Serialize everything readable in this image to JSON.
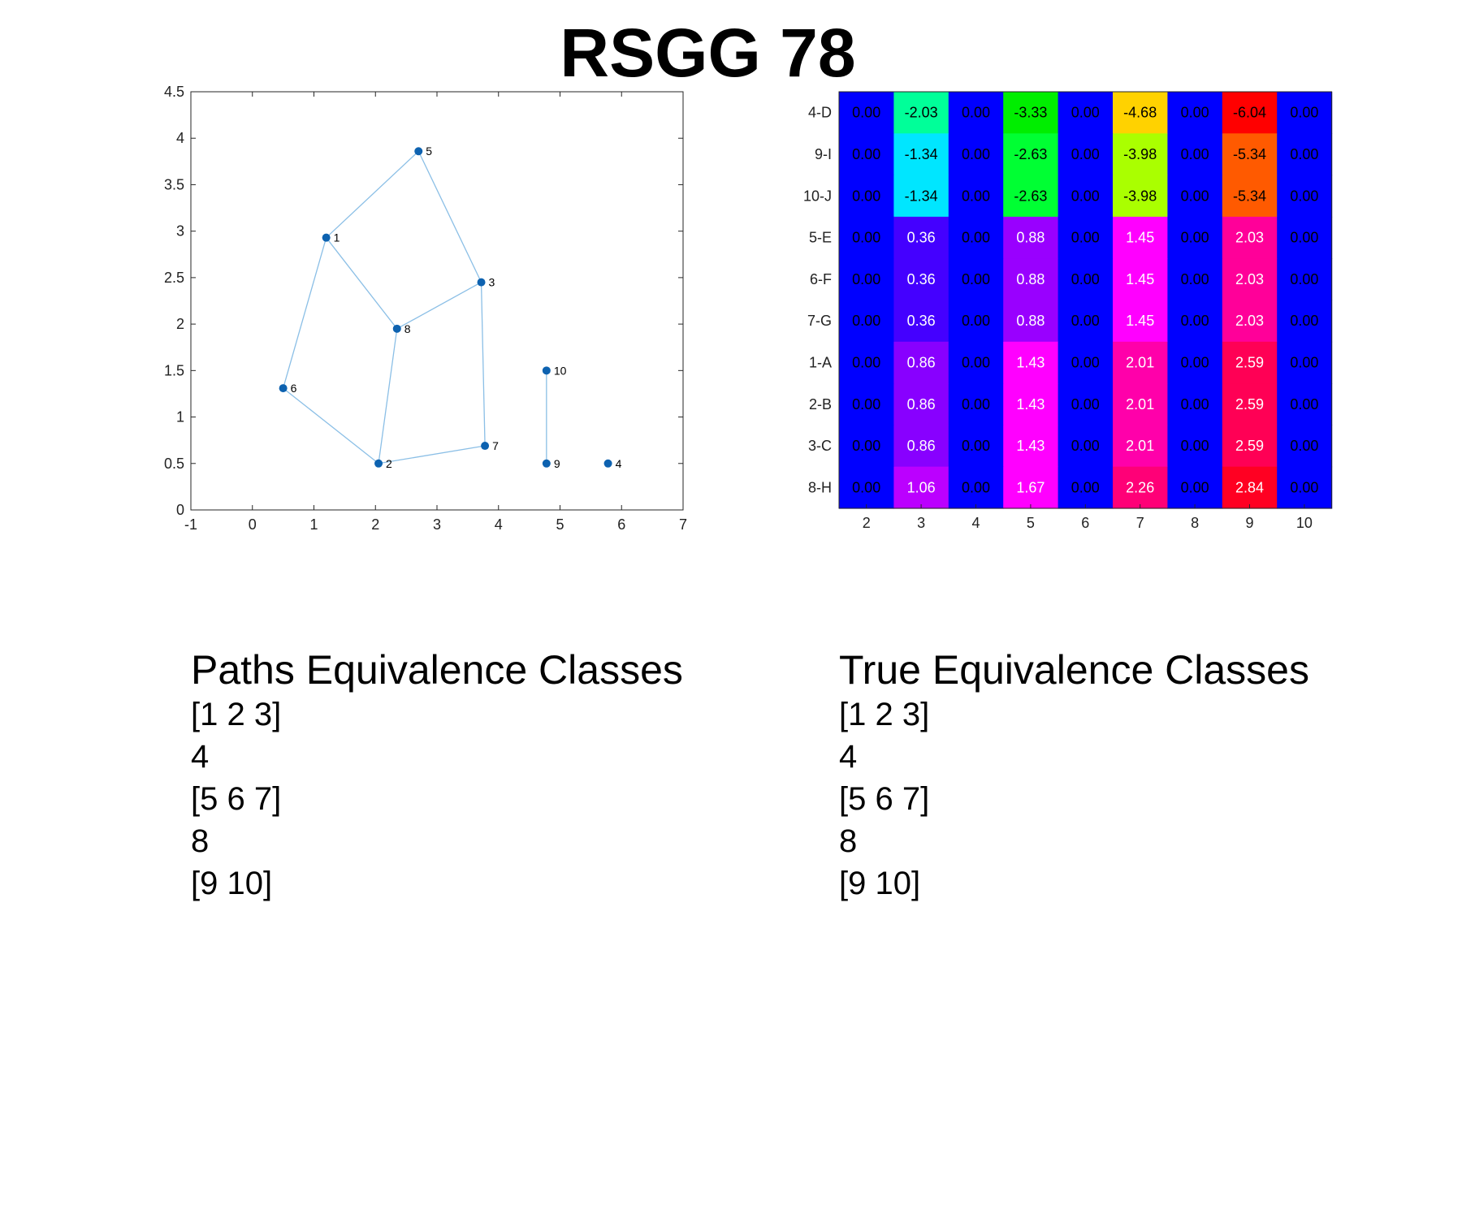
{
  "title": "RSGG 78",
  "graph": {
    "x_ticks": [
      "-1",
      "0",
      "1",
      "2",
      "3",
      "4",
      "5",
      "6",
      "7"
    ],
    "y_ticks": [
      "0",
      "0.5",
      "1",
      "1.5",
      "2",
      "2.5",
      "3",
      "3.5",
      "4",
      "4.5"
    ],
    "xlim": [
      -1,
      7
    ],
    "ylim": [
      0,
      4.5
    ],
    "node_color": "#0d62b0",
    "edge_color": "#8bbfe6",
    "nodes": [
      {
        "id": "1",
        "x": 1.2,
        "y": 2.93
      },
      {
        "id": "2",
        "x": 2.05,
        "y": 0.5
      },
      {
        "id": "3",
        "x": 3.72,
        "y": 2.45
      },
      {
        "id": "4",
        "x": 5.78,
        "y": 0.5
      },
      {
        "id": "5",
        "x": 2.7,
        "y": 3.86
      },
      {
        "id": "6",
        "x": 0.5,
        "y": 1.31
      },
      {
        "id": "7",
        "x": 3.78,
        "y": 0.69
      },
      {
        "id": "8",
        "x": 2.35,
        "y": 1.95
      },
      {
        "id": "9",
        "x": 4.78,
        "y": 0.5
      },
      {
        "id": "10",
        "x": 4.78,
        "y": 1.5
      }
    ],
    "edges": [
      [
        "1",
        "5"
      ],
      [
        "5",
        "3"
      ],
      [
        "1",
        "8"
      ],
      [
        "8",
        "3"
      ],
      [
        "1",
        "6"
      ],
      [
        "6",
        "2"
      ],
      [
        "8",
        "2"
      ],
      [
        "2",
        "7"
      ],
      [
        "3",
        "7"
      ],
      [
        "10",
        "9"
      ]
    ]
  },
  "heatmap": {
    "row_labels": [
      "4-D",
      "9-I",
      "10-J",
      "5-E",
      "6-F",
      "7-G",
      "1-A",
      "2-B",
      "3-C",
      "8-H"
    ],
    "col_labels": [
      "2",
      "3",
      "4",
      "5",
      "6",
      "7",
      "8",
      "9",
      "10"
    ],
    "values": [
      [
        "0.00",
        "-2.03",
        "0.00",
        "-3.33",
        "0.00",
        "-4.68",
        "0.00",
        "-6.04",
        "0.00"
      ],
      [
        "0.00",
        "-1.34",
        "0.00",
        "-2.63",
        "0.00",
        "-3.98",
        "0.00",
        "-5.34",
        "0.00"
      ],
      [
        "0.00",
        "-1.34",
        "0.00",
        "-2.63",
        "0.00",
        "-3.98",
        "0.00",
        "-5.34",
        "0.00"
      ],
      [
        "0.00",
        "0.36",
        "0.00",
        "0.88",
        "0.00",
        "1.45",
        "0.00",
        "2.03",
        "0.00"
      ],
      [
        "0.00",
        "0.36",
        "0.00",
        "0.88",
        "0.00",
        "1.45",
        "0.00",
        "2.03",
        "0.00"
      ],
      [
        "0.00",
        "0.36",
        "0.00",
        "0.88",
        "0.00",
        "1.45",
        "0.00",
        "2.03",
        "0.00"
      ],
      [
        "0.00",
        "0.86",
        "0.00",
        "1.43",
        "0.00",
        "2.01",
        "0.00",
        "2.59",
        "0.00"
      ],
      [
        "0.00",
        "0.86",
        "0.00",
        "1.43",
        "0.00",
        "2.01",
        "0.00",
        "2.59",
        "0.00"
      ],
      [
        "0.00",
        "0.86",
        "0.00",
        "1.43",
        "0.00",
        "2.01",
        "0.00",
        "2.59",
        "0.00"
      ],
      [
        "0.00",
        "1.06",
        "0.00",
        "1.67",
        "0.00",
        "2.26",
        "0.00",
        "2.84",
        "0.00"
      ]
    ],
    "cell_colors": [
      [
        "#0000ff",
        "#00ff99",
        "#0000ff",
        "#00ee00",
        "#0000ff",
        "#ffd200",
        "#0000ff",
        "#ff0000",
        "#0000ff"
      ],
      [
        "#0000ff",
        "#00e6ff",
        "#0000ff",
        "#00ff33",
        "#0000ff",
        "#aaff00",
        "#0000ff",
        "#ff5a00",
        "#0000ff"
      ],
      [
        "#0000ff",
        "#00e6ff",
        "#0000ff",
        "#00ff33",
        "#0000ff",
        "#aaff00",
        "#0000ff",
        "#ff5a00",
        "#0000ff"
      ],
      [
        "#0000ff",
        "#4400ff",
        "#0000ff",
        "#9900ff",
        "#0000ff",
        "#ff00ff",
        "#0000ff",
        "#ff0099",
        "#0000ff"
      ],
      [
        "#0000ff",
        "#4400ff",
        "#0000ff",
        "#9900ff",
        "#0000ff",
        "#ff00ff",
        "#0000ff",
        "#ff0099",
        "#0000ff"
      ],
      [
        "#0000ff",
        "#4400ff",
        "#0000ff",
        "#9900ff",
        "#0000ff",
        "#ff00ff",
        "#0000ff",
        "#ff0099",
        "#0000ff"
      ],
      [
        "#0000ff",
        "#8800ff",
        "#0000ff",
        "#ff00ff",
        "#0000ff",
        "#ff00aa",
        "#0000ff",
        "#ff0055",
        "#0000ff"
      ],
      [
        "#0000ff",
        "#8800ff",
        "#0000ff",
        "#ff00ff",
        "#0000ff",
        "#ff00aa",
        "#0000ff",
        "#ff0055",
        "#0000ff"
      ],
      [
        "#0000ff",
        "#8800ff",
        "#0000ff",
        "#ff00ff",
        "#0000ff",
        "#ff00aa",
        "#0000ff",
        "#ff0055",
        "#0000ff"
      ],
      [
        "#0000ff",
        "#bb00ff",
        "#0000ff",
        "#ff00ff",
        "#0000ff",
        "#ff0077",
        "#0000ff",
        "#ff0022",
        "#0000ff"
      ]
    ],
    "text_colors": [
      [
        "#000000",
        "#000000",
        "#000000",
        "#000000",
        "#000000",
        "#000000",
        "#000000",
        "#000000",
        "#000000"
      ],
      [
        "#000000",
        "#000000",
        "#000000",
        "#000000",
        "#000000",
        "#000000",
        "#000000",
        "#000000",
        "#000000"
      ],
      [
        "#000000",
        "#000000",
        "#000000",
        "#000000",
        "#000000",
        "#000000",
        "#000000",
        "#000000",
        "#000000"
      ],
      [
        "#000000",
        "#ffffff",
        "#000000",
        "#ffffff",
        "#000000",
        "#ffffff",
        "#000000",
        "#ffffff",
        "#000000"
      ],
      [
        "#000000",
        "#ffffff",
        "#000000",
        "#ffffff",
        "#000000",
        "#ffffff",
        "#000000",
        "#ffffff",
        "#000000"
      ],
      [
        "#000000",
        "#ffffff",
        "#000000",
        "#ffffff",
        "#000000",
        "#ffffff",
        "#000000",
        "#ffffff",
        "#000000"
      ],
      [
        "#000000",
        "#ffffff",
        "#000000",
        "#ffffff",
        "#000000",
        "#ffffff",
        "#000000",
        "#ffffff",
        "#000000"
      ],
      [
        "#000000",
        "#ffffff",
        "#000000",
        "#ffffff",
        "#000000",
        "#ffffff",
        "#000000",
        "#ffffff",
        "#000000"
      ],
      [
        "#000000",
        "#ffffff",
        "#000000",
        "#ffffff",
        "#000000",
        "#ffffff",
        "#000000",
        "#ffffff",
        "#000000"
      ],
      [
        "#000000",
        "#ffffff",
        "#000000",
        "#ffffff",
        "#000000",
        "#ffffff",
        "#000000",
        "#ffffff",
        "#000000"
      ]
    ]
  },
  "paths_classes": {
    "heading": "Paths Equivalence Classes",
    "items": [
      "[1 2 3]",
      "4",
      "[5 6 7]",
      "8",
      "[9 10]"
    ]
  },
  "true_classes": {
    "heading": "True Equivalence Classes",
    "items": [
      "[1 2 3]",
      "4",
      "[5 6 7]",
      "8",
      "[9 10]"
    ]
  }
}
